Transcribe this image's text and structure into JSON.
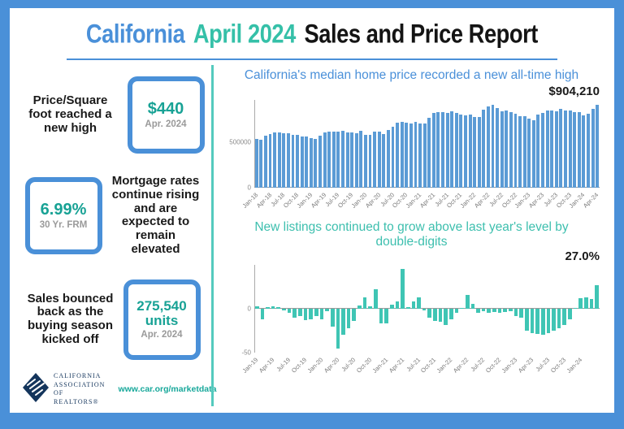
{
  "title": {
    "part1": "California",
    "part2": "April 2024",
    "part3": "Sales and Price Report"
  },
  "stats": [
    {
      "text": "Price/Square foot reached a new high",
      "value": "$440",
      "caption": "Apr. 2024"
    },
    {
      "value": "6.99%",
      "caption": "30 Yr. FRM",
      "text": "Mortgage rates continue rising and are expected to remain elevated"
    },
    {
      "text": "Sales bounced back as the buying season kicked off",
      "value": "275,540 units",
      "caption": "Apr. 2024"
    }
  ],
  "footer": {
    "org_line1": "CALIFORNIA",
    "org_line2": "ASSOCIATION",
    "org_line3": "OF REALTORS®",
    "url": "www.car.org/marketdata"
  },
  "colors": {
    "frame_blue": "#4a90d8",
    "chart1_bar": "#5b9bd5",
    "chart2_bar": "#3fc5b4",
    "teal_accent": "#35c0a8",
    "value_teal": "#18a295",
    "navy": "#14355c"
  },
  "chart_data": [
    {
      "type": "bar",
      "title": "California's median home price recorded a new all-time high",
      "annotation": "$904,210",
      "bar_color": "#5b9bd5",
      "ylim": [
        0,
        950000
      ],
      "yticks": [
        {
          "label": "500000",
          "value": 500000
        },
        {
          "label": "0",
          "value": 0
        }
      ],
      "tick_step": 3,
      "tick_count": 26,
      "legend": "none",
      "grid": "off",
      "categories": [
        "Jan-18",
        "Feb-18",
        "Mar-18",
        "Apr-18",
        "May-18",
        "Jun-18",
        "Jul-18",
        "Aug-18",
        "Sep-18",
        "Oct-18",
        "Nov-18",
        "Dec-18",
        "Jan-19",
        "Feb-19",
        "Mar-19",
        "Apr-19",
        "May-19",
        "Jun-19",
        "Jul-19",
        "Aug-19",
        "Sep-19",
        "Oct-19",
        "Nov-19",
        "Dec-19",
        "Jan-20",
        "Feb-20",
        "Mar-20",
        "Apr-20",
        "May-20",
        "Jun-20",
        "Jul-20",
        "Aug-20",
        "Sep-20",
        "Oct-20",
        "Nov-20",
        "Dec-20",
        "Jan-21",
        "Feb-21",
        "Mar-21",
        "Apr-21",
        "May-21",
        "Jun-21",
        "Jul-21",
        "Aug-21",
        "Sep-21",
        "Oct-21",
        "Nov-21",
        "Dec-21",
        "Jan-22",
        "Feb-22",
        "Mar-22",
        "Apr-22",
        "May-22",
        "Jun-22",
        "Jul-22",
        "Aug-22",
        "Sep-22",
        "Oct-22",
        "Nov-22",
        "Dec-22",
        "Jan-23",
        "Feb-23",
        "Mar-23",
        "Apr-23",
        "May-23",
        "Jun-23",
        "Jul-23",
        "Aug-23",
        "Sep-23",
        "Oct-23",
        "Nov-23",
        "Dec-23",
        "Jan-24",
        "Feb-24",
        "Mar-24",
        "Apr-24"
      ],
      "values": [
        527000,
        522000,
        564000,
        584000,
        600000,
        602000,
        591000,
        596000,
        578000,
        572000,
        554000,
        557000,
        538000,
        535000,
        565000,
        602000,
        611000,
        611000,
        607000,
        617000,
        605000,
        605000,
        589000,
        615000,
        575000,
        579000,
        612000,
        606000,
        588000,
        626000,
        666000,
        706000,
        712000,
        711000,
        699000,
        717000,
        699000,
        699000,
        759000,
        814000,
        819000,
        819000,
        811000,
        827000,
        809000,
        798000,
        782000,
        797000,
        765000,
        771000,
        849000,
        884000,
        898000,
        864000,
        833000,
        839000,
        821000,
        801000,
        777000,
        774000,
        751000,
        735000,
        791000,
        815000,
        836000,
        838000,
        832000,
        859000,
        843000,
        840000,
        822000,
        819000,
        788000,
        806000,
        854000,
        904210
      ]
    },
    {
      "type": "bar",
      "title_line1": "New listings continued to grow above last year's level by",
      "title_line2": "double-digits",
      "annotation": "27.0%",
      "bar_color": "#3fc5b4",
      "ylim": [
        -50,
        50
      ],
      "yticks": [
        {
          "label": "0",
          "value": 0
        },
        {
          "label": "-50",
          "value": -50
        }
      ],
      "tick_step": 3,
      "tick_count": 21,
      "legend": "none",
      "grid": "off",
      "categories": [
        "Jan-19",
        "Feb-19",
        "Mar-19",
        "Apr-19",
        "May-19",
        "Jun-19",
        "Jul-19",
        "Aug-19",
        "Sep-19",
        "Oct-19",
        "Nov-19",
        "Dec-19",
        "Jan-20",
        "Feb-20",
        "Mar-20",
        "Apr-20",
        "May-20",
        "Jun-20",
        "Jul-20",
        "Aug-20",
        "Sep-20",
        "Oct-20",
        "Nov-20",
        "Dec-20",
        "Jan-21",
        "Feb-21",
        "Mar-21",
        "Apr-21",
        "May-21",
        "Jun-21",
        "Jul-21",
        "Aug-21",
        "Sep-21",
        "Oct-21",
        "Nov-21",
        "Dec-21",
        "Jan-22",
        "Feb-22",
        "Mar-22",
        "Apr-22",
        "May-22",
        "Jun-22",
        "Jul-22",
        "Aug-22",
        "Sep-22",
        "Oct-22",
        "Nov-22",
        "Dec-22",
        "Jan-23",
        "Feb-23",
        "Mar-23",
        "Apr-23",
        "May-23",
        "Jun-23",
        "Jul-23",
        "Aug-23",
        "Sep-23",
        "Oct-23",
        "Nov-23",
        "Dec-23",
        "Jan-24",
        "Feb-24",
        "Mar-24",
        "Apr-24"
      ],
      "values": [
        3,
        -12,
        2,
        3,
        2,
        -2,
        -5,
        -10,
        -8,
        -13,
        -12,
        -8,
        -12,
        -3,
        -20,
        -45,
        -30,
        -22,
        -14,
        4,
        13,
        3,
        22,
        -17,
        -17,
        5,
        8,
        45,
        2,
        8,
        13,
        -2,
        -10,
        -14,
        -15,
        -18,
        -12,
        -5,
        1,
        16,
        6,
        -5,
        -3,
        -5,
        -4,
        -5,
        -4,
        -3,
        -8,
        -10,
        -25,
        -28,
        -29,
        -30,
        -28,
        -25,
        -22,
        -18,
        -12,
        1,
        12,
        13,
        11,
        27
      ]
    }
  ]
}
